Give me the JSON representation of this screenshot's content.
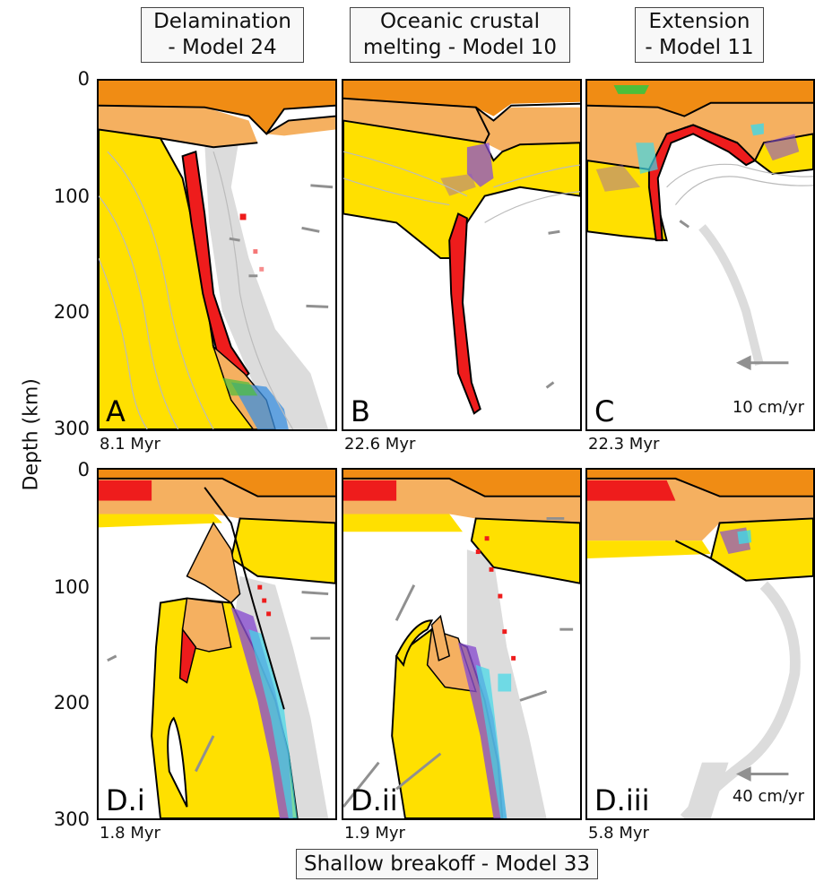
{
  "titles": {
    "a_line1": "Delamination",
    "a_line2": "- Model 24",
    "b_line1": "Oceanic crustal",
    "b_line2": "melting - Model 10",
    "c_line1": "Extension",
    "c_line2": "- Model 11",
    "bottom": "Shallow breakoff - Model 33"
  },
  "axis": {
    "ylabel": "Depth (km)",
    "top_ticks": [
      "0",
      "100",
      "200",
      "300"
    ],
    "bottom_ticks": [
      "0",
      "100",
      "200",
      "300"
    ]
  },
  "panels": [
    {
      "label": "A",
      "time": "8.1 Myr"
    },
    {
      "label": "B",
      "time": "22.6 Myr"
    },
    {
      "label": "C",
      "time": "22.3 Myr",
      "scale": "10 cm/yr"
    },
    {
      "label": "D.i",
      "time": "1.8 Myr"
    },
    {
      "label": "D.ii",
      "time": "1.9 Myr"
    },
    {
      "label": "D.iii",
      "time": "5.8 Myr",
      "scale": "40 cm/yr"
    }
  ],
  "colors": {
    "upper_crust": "#f08c14",
    "lower_crust": "#f5b060",
    "mantle_lithosphere": "#ffe000",
    "oceanic_crust": "#ee1c1c",
    "weak_zone": "#dcdcdc",
    "melt_purple": "#8a4fd0",
    "melt_cyan": "#40d8e8",
    "sediment_green": "#4cbf3a",
    "arrow": "#909090"
  }
}
